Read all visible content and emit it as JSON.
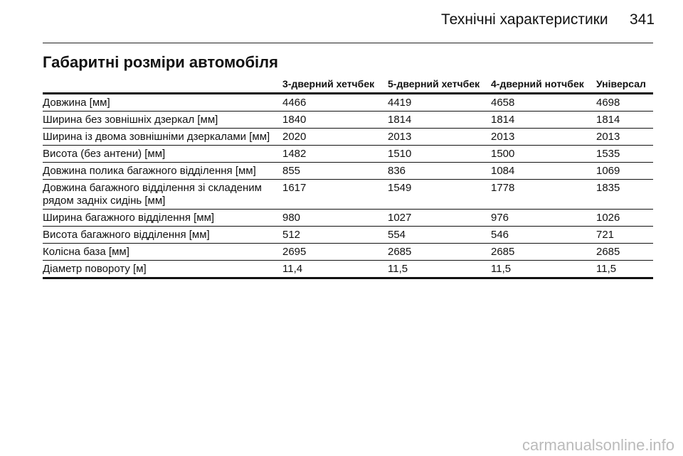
{
  "header": {
    "title": "Технічні характеристики",
    "page_number": "341"
  },
  "section_title": "Габаритні розміри автомобіля",
  "table": {
    "columns": [
      "3-дверний хетчбек",
      "5-дверний хетчбек",
      "4-дверний нотчбек",
      "Універсал"
    ],
    "rows": [
      [
        "Довжина [мм]",
        "4466",
        "4419",
        "4658",
        "4698"
      ],
      [
        "Ширина без зовнішніх дзеркал [мм]",
        "1840",
        "1814",
        "1814",
        "1814"
      ],
      [
        "Ширина із двома зовнішніми дзеркалами [мм]",
        "2020",
        "2013",
        "2013",
        "2013"
      ],
      [
        "Висота (без антени) [мм]",
        "1482",
        "1510",
        "1500",
        "1535"
      ],
      [
        "Довжина полика багажного відділення [мм]",
        "855",
        "836",
        "1084",
        "1069"
      ],
      [
        "Довжина багажного відділення зі складеним рядом задніх сидінь [мм]",
        "1617",
        "1549",
        "1778",
        "1835"
      ],
      [
        "Ширина багажного відділення [мм]",
        "980",
        "1027",
        "976",
        "1026"
      ],
      [
        "Висота багажного відділення [мм]",
        "512",
        "554",
        "546",
        "721"
      ],
      [
        "Колісна база [мм]",
        "2695",
        "2685",
        "2685",
        "2685"
      ],
      [
        "Діаметр повороту [м]",
        "11,4",
        "11,5",
        "11,5",
        "11,5"
      ]
    ]
  },
  "watermark": "carmanualsonline.info"
}
